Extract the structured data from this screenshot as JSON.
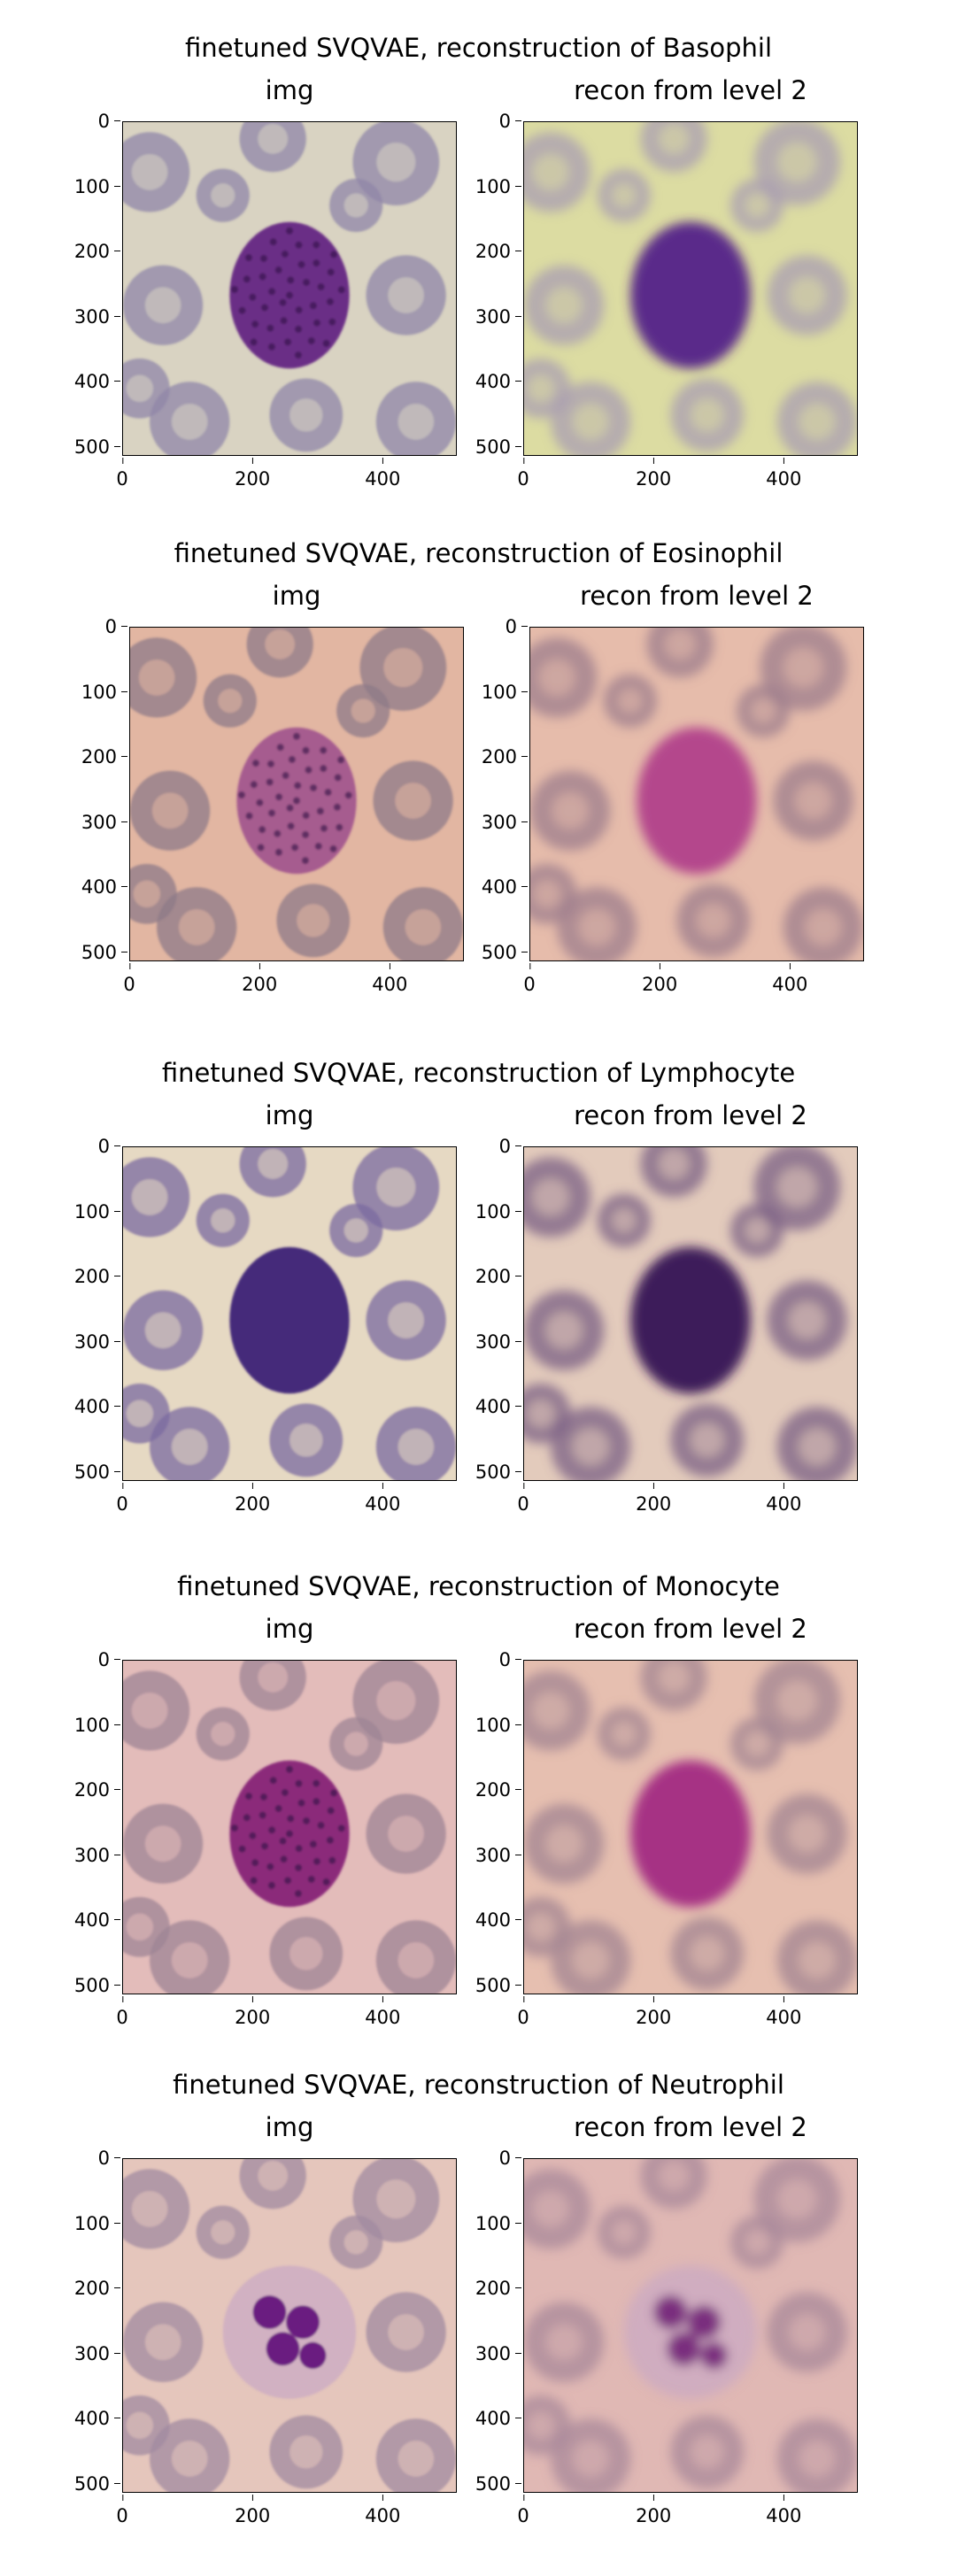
{
  "figures": [
    {
      "title": "finetuned SVQVAE, reconstruction of Basophil",
      "panels": [
        {
          "title": "img",
          "bg": "#d9d3c2",
          "cell": "#6a2d86",
          "cell_texture": "granular",
          "rbc": "#8f86a8",
          "blur": false
        },
        {
          "title": "recon from level 2",
          "bg": "#dcdca2",
          "cell": "#5a2a8a",
          "cell_texture": "smooth",
          "rbc": "#a89cb2",
          "blur": true
        }
      ]
    },
    {
      "title": "finetuned SVQVAE, reconstruction of Eosinophil",
      "panels": [
        {
          "title": "img",
          "bg": "#e2b6a2",
          "cell": "#a65b8f",
          "cell_texture": "granular",
          "rbc": "#8d7a88",
          "blur": false
        },
        {
          "title": "recon from level 2",
          "bg": "#e6bcab",
          "cell": "#b4468c",
          "cell_texture": "smooth",
          "rbc": "#9c7c8c",
          "blur": true
        }
      ]
    },
    {
      "title": "finetuned SVQVAE, reconstruction of Lymphocyte",
      "panels": [
        {
          "title": "img",
          "bg": "#e6d9c3",
          "cell": "#452a7a",
          "cell_texture": "smooth",
          "rbc": "#7a6aa0",
          "blur": false
        },
        {
          "title": "recon from level 2",
          "bg": "#e3cbbc",
          "cell": "#3d1d5a",
          "cell_texture": "smooth",
          "rbc": "#7a5f84",
          "blur": true
        }
      ]
    },
    {
      "title": "finetuned SVQVAE, reconstruction of Monocyte",
      "panels": [
        {
          "title": "img",
          "bg": "#e3bcba",
          "cell": "#8b2c7a",
          "cell_texture": "granular",
          "rbc": "#9e8494",
          "blur": false
        },
        {
          "title": "recon from level 2",
          "bg": "#e6bfb0",
          "cell": "#a63384",
          "cell_texture": "smooth",
          "rbc": "#a28492",
          "blur": true
        }
      ]
    },
    {
      "title": "finetuned SVQVAE, reconstruction of Neutrophil",
      "panels": [
        {
          "title": "img",
          "bg": "#e5c6bc",
          "cell": "#6a1f80",
          "cell_texture": "lobed",
          "rbc": "#a08aa0",
          "blur": false
        },
        {
          "title": "recon from level 2",
          "bg": "#e0b8b4",
          "cell": "#7a2d7e",
          "cell_texture": "lobed",
          "rbc": "#a8889a",
          "blur": true
        }
      ]
    }
  ],
  "axes": {
    "y_ticks": [
      "0",
      "100",
      "200",
      "300",
      "400",
      "500"
    ],
    "x_ticks": [
      "0",
      "200",
      "400"
    ],
    "range": [
      0,
      511
    ]
  }
}
